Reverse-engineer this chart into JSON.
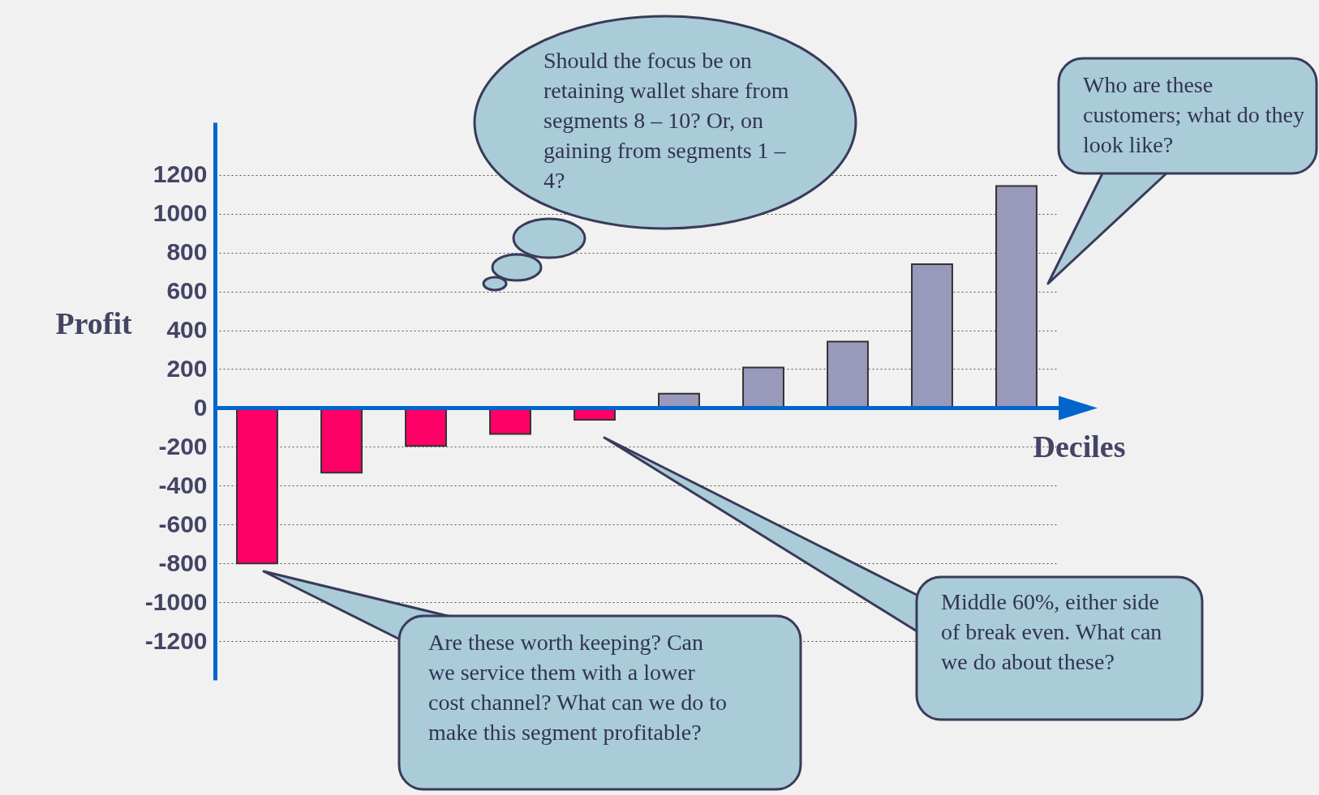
{
  "chart_data": {
    "type": "bar",
    "xlabel": "Deciles",
    "ylabel": "Profit",
    "categories": [
      null,
      null,
      null,
      null,
      null,
      null,
      null,
      null,
      null,
      null
    ],
    "values": [
      -800,
      -333,
      -195,
      -134,
      -61,
      74,
      208,
      342,
      740,
      1143
    ],
    "colors": [
      "#ff0066",
      "#ff0066",
      "#ff0066",
      "#ff0066",
      "#ff0066",
      "#9999bb",
      "#9999bb",
      "#9999bb",
      "#9999bb",
      "#9999bb"
    ],
    "ylim": [
      -1400,
      1470
    ],
    "yticks": [
      -1200,
      -1000,
      -800,
      -600,
      -400,
      -200,
      0,
      200,
      400,
      600,
      800,
      1000,
      1200
    ],
    "grid": "y",
    "ref_lines": [
      {
        "axis": "y",
        "value": 0,
        "color": "#0066cc"
      }
    ],
    "annotations": [
      "Should the focus be on retaining wallet share from segments 8 – 10? Or, on gaining from segments 1 – 4?",
      "Who are these customers; what do they look like?",
      "Are these worth keeping? Can we service them with a lower cost channel? What can we do to make this segment profitable?",
      "Middle 60%, either side of break even. What can we do about these?"
    ]
  }
}
